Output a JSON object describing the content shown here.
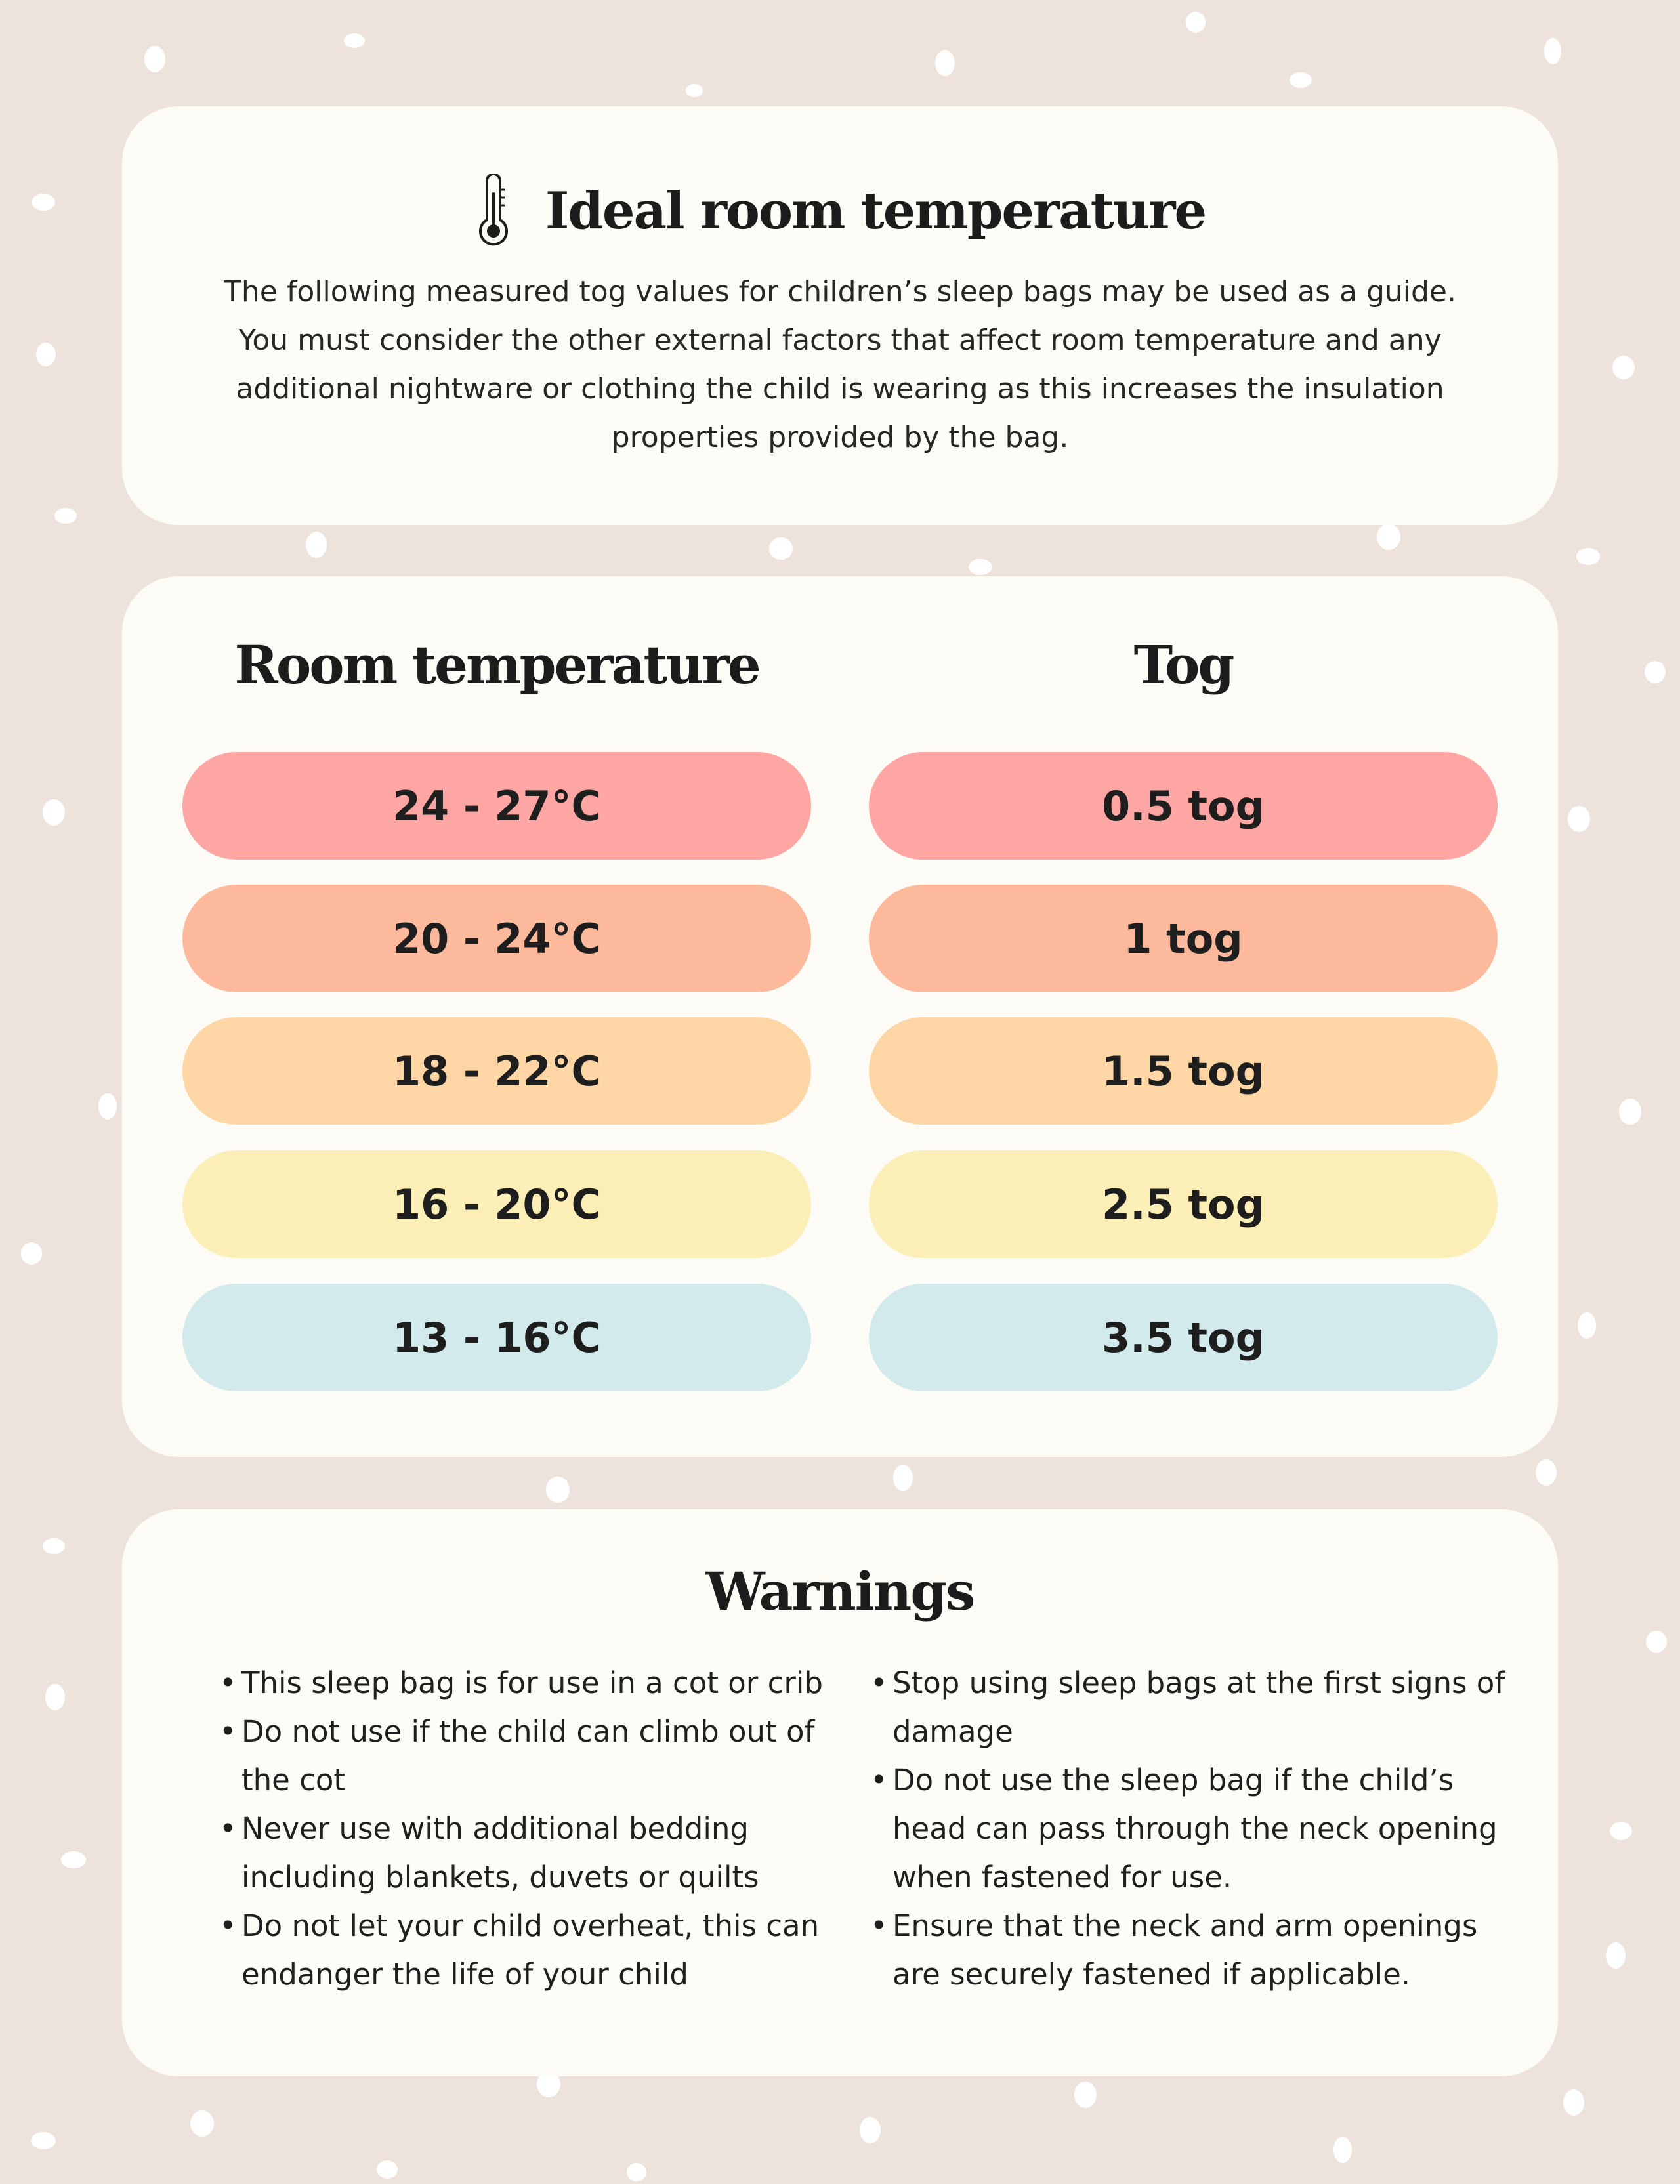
{
  "intro": {
    "icon": "thermometer-icon",
    "title": "Ideal room temperature",
    "body": "The following measured tog values for children’s sleep bags may be used as a guide. You must consider the other external factors that affect room temperature and any  additional nightware or clothing the child is wearing as this increases the insulation  properties provided by the bag."
  },
  "table": {
    "headers": {
      "room": "Room temperature",
      "tog": "Tog"
    },
    "rows": [
      {
        "room": "24 - 27°C",
        "tog": "0.5 tog",
        "color": "#fda6a4"
      },
      {
        "room": "20 - 24°C",
        "tog": "1 tog",
        "color": "#fdb99b"
      },
      {
        "room": "18 - 22°C",
        "tog": "1.5 tog",
        "color": "#fed6a5"
      },
      {
        "room": "16 - 20°C",
        "tog": "2.5 tog",
        "color": "#fbefb7"
      },
      {
        "room": "13 - 16°C",
        "tog": "3.5 tog",
        "color": "#d2eaeb"
      }
    ]
  },
  "warnings": {
    "title": "Warnings",
    "left": [
      "This sleep bag is for use in a cot or crib",
      "Do not use if the child can climb out of the cot",
      "Never use with additional bedding including blankets, duvets or quilts",
      "Do not let your child overheat, this can endanger the life of your child"
    ],
    "right": [
      "Stop using sleep bags at the first signs of damage",
      "Do not use the sleep bag if the child’s head can pass through the neck opening when fastened for use.",
      "Ensure that the neck and arm openings are securely fastened if applicable."
    ]
  },
  "colors": {
    "background": "#ede3dc",
    "card": "#fcfbf5",
    "dots": "#ffffff"
  }
}
